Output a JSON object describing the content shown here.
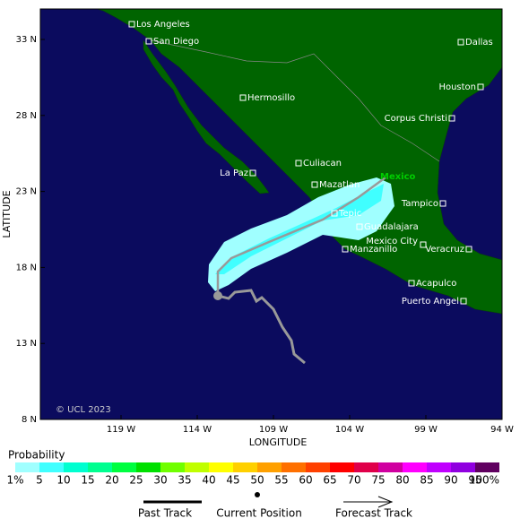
{
  "map": {
    "cities": [
      "Los Angeles",
      "San Diego",
      "Dallas",
      "Hermosillo",
      "Houston",
      "Corpus Christi",
      "Culiacan",
      "La Paz",
      "Mazatlan",
      "Tepic",
      "Guadalajara",
      "Tampico",
      "Mexico City",
      "Manzanillo",
      "Veracruz",
      "Acapulco",
      "Puerto Angel"
    ],
    "storm_label": "Mexico",
    "lat_ticks": [
      "33 N",
      "28 N",
      "23 N",
      "18 N",
      "13 N",
      "8 N"
    ],
    "lon_ticks": [
      "119 W",
      "114 W",
      "109 W",
      "104 W",
      "99 W",
      "94 W"
    ],
    "x_axis_label": "LONGITUDE",
    "y_axis_label": "LATITUDE",
    "copyright": "© UCL 2023"
  },
  "legend": {
    "title": "Probability",
    "labels": [
      "1%",
      "5",
      "10",
      "15",
      "20",
      "25",
      "30",
      "35",
      "40",
      "45",
      "50",
      "55",
      "60",
      "65",
      "70",
      "75",
      "80",
      "85",
      "90",
      "95",
      "100%"
    ],
    "colors": [
      "#a0ffff",
      "#40ffff",
      "#00ffd0",
      "#00ff90",
      "#00ff40",
      "#00e000",
      "#70ff00",
      "#c0ff00",
      "#ffff00",
      "#ffd000",
      "#ffa000",
      "#ff7000",
      "#ff4000",
      "#ff0000",
      "#e0004a",
      "#d000a0",
      "#ff00ff",
      "#c000ff",
      "#9000e0",
      "#600060"
    ],
    "items": [
      "Past Track",
      "Current Position",
      "Forecast Track"
    ]
  }
}
